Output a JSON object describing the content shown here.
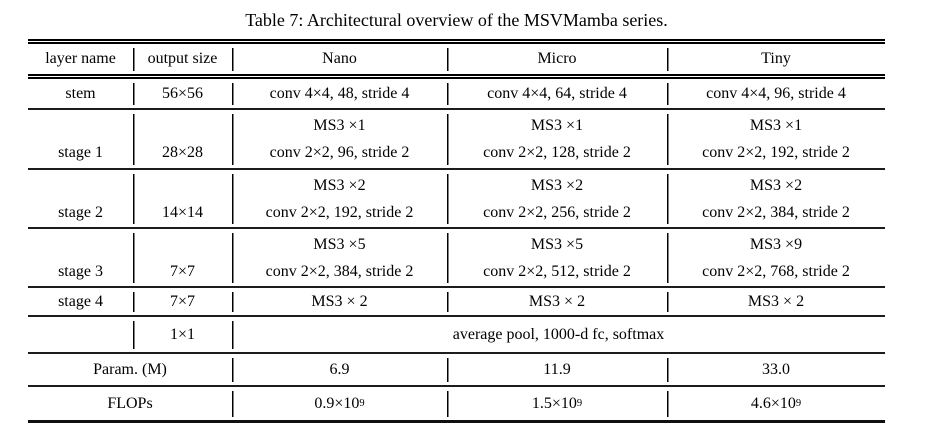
{
  "caption": "Table 7: Architectural overview of the MSVMamba series.",
  "columns": [
    "layer name",
    "output size",
    "Nano",
    "Micro",
    "Tiny"
  ],
  "stem": {
    "name": "stem",
    "size": "56×56",
    "nano": "conv 4×4, 48, stride 4",
    "micro": "conv 4×4, 64, stride 4",
    "tiny": "conv 4×4, 96, stride 4"
  },
  "stages": {
    "s1": {
      "name": "stage 1",
      "size": "28×28",
      "nano": [
        "MS3 ×1",
        "conv 2×2, 96, stride 2"
      ],
      "micro": [
        "MS3 ×1",
        "conv 2×2, 128, stride 2"
      ],
      "tiny": [
        "MS3 ×1",
        "conv 2×2, 192, stride 2"
      ]
    },
    "s2": {
      "name": "stage 2",
      "size": "14×14",
      "nano": [
        "MS3 ×2",
        "conv 2×2, 192, stride 2"
      ],
      "micro": [
        "MS3 ×2",
        "conv 2×2, 256, stride 2"
      ],
      "tiny": [
        "MS3 ×2",
        "conv 2×2, 384, stride 2"
      ]
    },
    "s3": {
      "name": "stage 3",
      "size": "7×7",
      "nano": [
        "MS3 ×5",
        "conv 2×2, 384, stride 2"
      ],
      "micro": [
        "MS3 ×5",
        "conv 2×2, 512, stride 2"
      ],
      "tiny": [
        "MS3 ×9",
        "conv 2×2, 768, stride 2"
      ]
    },
    "s4": {
      "name": "stage 4",
      "size": "7×7",
      "nano": "MS3 × 2",
      "micro": "MS3 × 2",
      "tiny": "MS3 × 2"
    }
  },
  "pool": {
    "size": "1×1",
    "content": "average pool, 1000-d fc, softmax"
  },
  "params": {
    "label": "Param. (M)",
    "nano": "6.9",
    "micro": "11.9",
    "tiny": "33.0"
  },
  "flops": {
    "label": "FLOPs",
    "nano": {
      "base": "0.9×10",
      "exp": "9"
    },
    "micro": {
      "base": "1.5×10",
      "exp": "9"
    },
    "tiny": {
      "base": "4.6×10",
      "exp": "9"
    }
  }
}
